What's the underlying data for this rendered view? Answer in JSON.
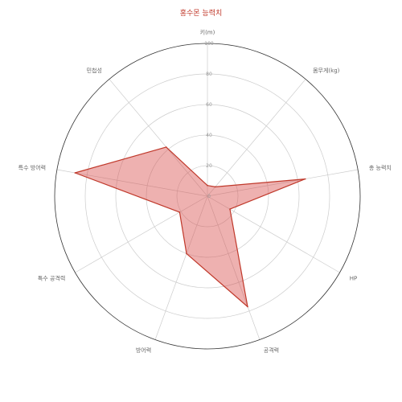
{
  "chart_data": {
    "type": "radar",
    "title": "홍수몬 능력치",
    "axes": [
      "키(m)",
      "몸무게(kg)",
      "총 능력치",
      "HP",
      "공격력",
      "방어력",
      "특수 공격력",
      "특수 방어력",
      "민첩성"
    ],
    "series": [
      {
        "values": [
          7,
          8,
          65,
          17,
          77,
          40,
          21,
          88,
          42
        ]
      }
    ],
    "rlim": [
      0,
      100
    ],
    "ticks": [
      0,
      20,
      40,
      60,
      80,
      100
    ],
    "tick_labels": [
      "0",
      "20",
      "40",
      "60",
      "80",
      "100"
    ],
    "grid": true,
    "colors": {
      "title": "#c0392b",
      "fill": "#d9534f",
      "stroke": "#c0392b",
      "grid": "#cccccc",
      "outer": "#333333"
    }
  }
}
